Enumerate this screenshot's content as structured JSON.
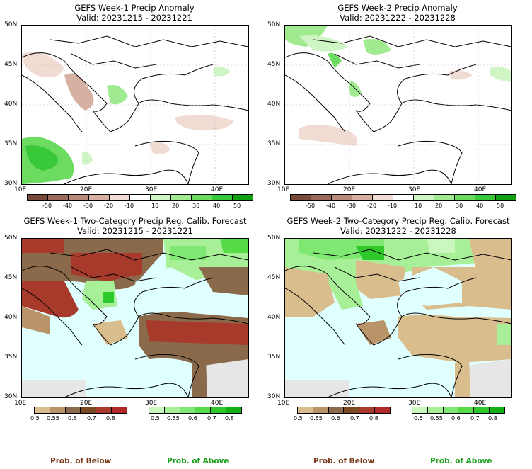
{
  "panels": {
    "p1": {
      "title": "GEFS Week-1 Precip Anomaly",
      "valid": "Valid: 20231215 - 20231221"
    },
    "p2": {
      "title": "GEFS Week-2 Precip Anomaly",
      "valid": "Valid: 20231222 - 20231228"
    },
    "p3": {
      "title": "GEFS Week-1 Two-Category Precip Reg. Calib. Forecast",
      "valid": "Valid: 20231215 - 20231221"
    },
    "p4": {
      "title": "GEFS Week-2 Two-Category Precip Reg. Calib. Forecast",
      "valid": "Valid: 20231222 - 20231228"
    }
  },
  "axes": {
    "lat": [
      "50N",
      "45N",
      "40N",
      "35N",
      "30N"
    ],
    "lon": [
      "10E",
      "20E",
      "30E",
      "40E"
    ]
  },
  "anomaly_legend": {
    "labels": [
      "-50",
      "-40",
      "-30",
      "-20",
      "-10",
      "10",
      "20",
      "30",
      "40",
      "50"
    ],
    "colors": [
      "#7a4a3a",
      "#9b6a5a",
      "#b98a7a",
      "#d6b0a0",
      "#f0dcd2",
      "#ffffff",
      "#cff5c5",
      "#a0eb90",
      "#6cdc60",
      "#38c838",
      "#10a010"
    ]
  },
  "prob_legend": {
    "labels": [
      "0.5",
      "0.55",
      "0.6",
      "0.7",
      "0.8"
    ],
    "below_colors": [
      "#d9bd8c",
      "#b99468",
      "#8a6a4a",
      "#7a4a22",
      "#a83a2c",
      "#b12828"
    ],
    "above_colors": [
      "#c9f7bd",
      "#a8f098",
      "#7ee872",
      "#55dc46",
      "#2ec82a",
      "#12b012"
    ],
    "below_label": "Prob. of Below",
    "above_label": "Prob. of Above"
  },
  "colors": {
    "sea": "#e0ffff",
    "below_label": "#7a3a1a",
    "above_label": "#1aa01a",
    "nodata": "#e6e6e6"
  }
}
